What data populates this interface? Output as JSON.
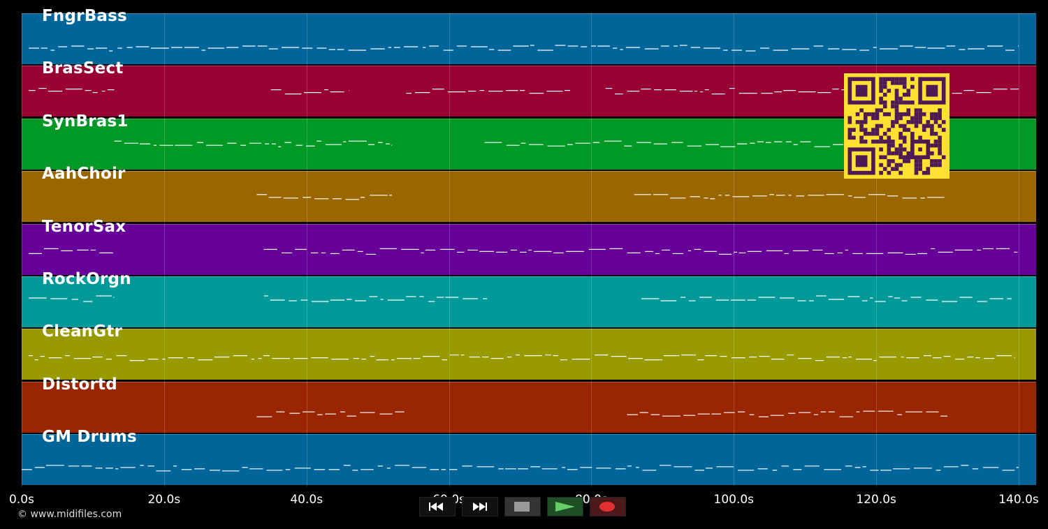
{
  "tracks": [
    {
      "name": "FngrBass",
      "color": "#006699",
      "note_y": 68
    },
    {
      "name": "BrasSect",
      "color": "#990033",
      "note_y": 130
    },
    {
      "name": "SynBras1",
      "color": "#009926",
      "note_y": 205
    },
    {
      "name": "AahChoir",
      "color": "#996600",
      "note_y": 281
    },
    {
      "name": "TenorSax",
      "color": "#660099",
      "note_y": 359
    },
    {
      "name": "RockOrgn",
      "color": "#009999",
      "note_y": 427
    },
    {
      "name": "CleanGtr",
      "color": "#999900",
      "note_y": 512
    },
    {
      "name": "Distortd",
      "color": "#992600",
      "note_y": 592
    },
    {
      "name": "GM Drums",
      "color": "#006699",
      "note_y": 670
    }
  ],
  "time_axis": {
    "ticks": [
      "0.0s",
      "20.0s",
      "40.0s",
      "60.0s",
      "80.0s",
      "100.0s",
      "120.0s",
      "140.0s"
    ],
    "tick_seconds": [
      0,
      20,
      40,
      60,
      80,
      100,
      120,
      140
    ]
  },
  "copyright": "© www.midifiles.com",
  "transport": [
    {
      "name": "rewind-icon",
      "bg": "#111111"
    },
    {
      "name": "fast-forward-icon",
      "bg": "#111111"
    },
    {
      "name": "stop-icon",
      "bg": "#333333"
    },
    {
      "name": "play-icon",
      "bg": "#1f4d26"
    },
    {
      "name": "record-icon",
      "bg": "#4d1a1a"
    }
  ],
  "colors": {
    "note": "#ffffff",
    "qr_bg": "#ffe033",
    "qr_fg": "#4d1a55",
    "play": "#66cc66",
    "record": "#e03030",
    "stop": "#999999"
  }
}
